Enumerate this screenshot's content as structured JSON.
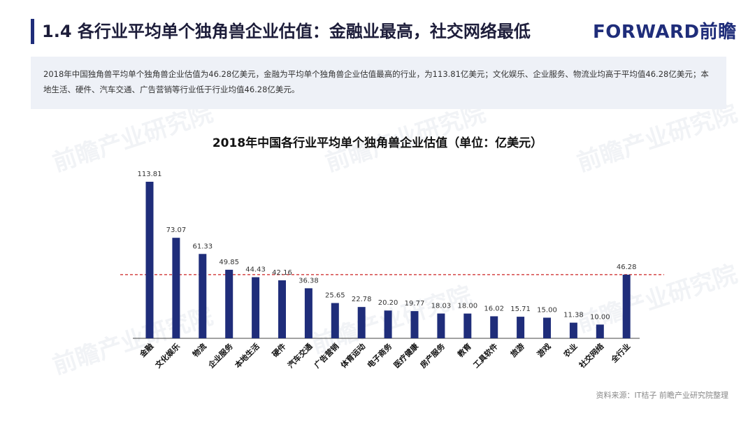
{
  "header": {
    "title": "1.4 各行业平均单个独角兽企业估值：金融业最高，社交网络最低",
    "logo_text": "FORWARD前瞻"
  },
  "summary": {
    "text": "2018年中国独角兽平均单个独角兽企业估值为46.28亿美元，金融为平均单个独角兽企业估值最高的行业，为113.81亿美元；文化娱乐、企业服务、物流业均高于平均值46.28亿美元；本地生活、硬件、汽车交通、广告营销等行业低于行业均值46.28亿美元。"
  },
  "watermark": "前瞻产业研究院",
  "source": "资料来源：IT桔子 前瞻产业研究院整理",
  "colors": {
    "bar": "#1f2d7a",
    "reference_line": "#cc2222",
    "header_bar": "#1f2d7a"
  },
  "chart_data": {
    "type": "bar",
    "title": "2018年中国各行业平均单个独角兽企业估值（单位：亿美元）",
    "xlabel": "",
    "ylabel": "",
    "categories": [
      "金融",
      "文化娱乐",
      "物流",
      "企业服务",
      "本地生活",
      "硬件",
      "汽车交通",
      "广告营销",
      "体育运动",
      "电子商务",
      "医疗健康",
      "房产服务",
      "教育",
      "工具软件",
      "旅游",
      "游戏",
      "农业",
      "社交网络",
      "全行业"
    ],
    "values": [
      113.81,
      73.07,
      61.33,
      49.85,
      44.43,
      42.16,
      36.38,
      25.65,
      22.78,
      20.2,
      19.77,
      18.03,
      18.0,
      16.02,
      15.71,
      15.0,
      11.38,
      10.0,
      46.28
    ],
    "value_labels": [
      "113.81",
      "73.07",
      "61.33",
      "49.85",
      "44.43",
      "42.16",
      "36.38",
      "25.65",
      "22.78",
      "20.20",
      "19.77",
      "18.03",
      "18.00",
      "16.02",
      "15.71",
      "15.00",
      "11.38",
      "10.00",
      "46.28"
    ],
    "reference_line": 46.28,
    "ylim": [
      0,
      120
    ],
    "grid": false,
    "legend": "none"
  }
}
